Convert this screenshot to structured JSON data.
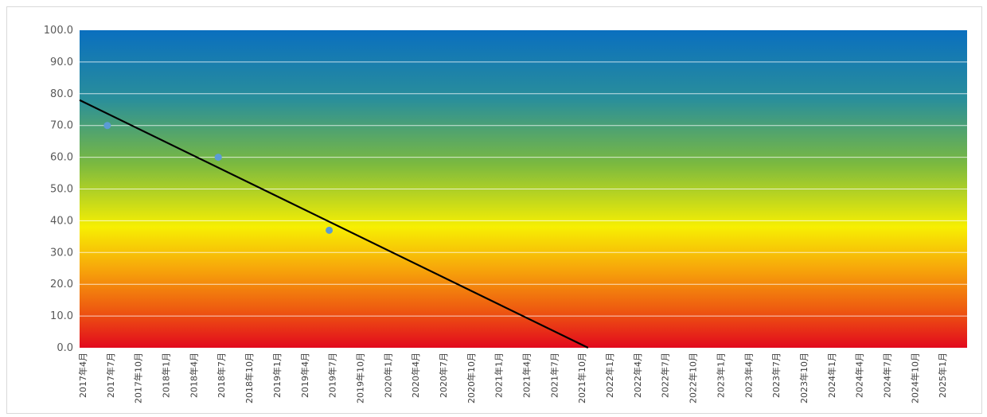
{
  "chart_data": {
    "type": "scatter",
    "title": "",
    "xlabel": "",
    "ylabel": "",
    "ylim": [
      0,
      100
    ],
    "y_ticks": [
      "0.0",
      "10.0",
      "20.0",
      "30.0",
      "40.0",
      "50.0",
      "60.0",
      "70.0",
      "80.0",
      "90.0",
      "100.0"
    ],
    "x_ticks": [
      "2017年4月",
      "2017年7月",
      "2017年10月",
      "2018年1月",
      "2018年4月",
      "2018年7月",
      "2018年10月",
      "2019年1月",
      "2019年4月",
      "2019年7月",
      "2019年10月",
      "2020年1月",
      "2020年4月",
      "2020年7月",
      "2020年10月",
      "2021年1月",
      "2021年4月",
      "2021年7月",
      "2021年10月",
      "2022年1月",
      "2022年4月",
      "2022年7月",
      "2022年10月",
      "2023年1月",
      "2023年4月",
      "2023年7月",
      "2023年10月",
      "2024年1月",
      "2024年4月",
      "2024年7月",
      "2024年10月",
      "2025年1月"
    ],
    "x_range": [
      "2017-04",
      "2025-04"
    ],
    "points": [
      {
        "x": "2017-07",
        "y": 70
      },
      {
        "x": "2018-07",
        "y": 60
      },
      {
        "x": "2019-07",
        "y": 37
      }
    ],
    "trendline": [
      {
        "x": "2017-04",
        "y": 78
      },
      {
        "x": "2021-11",
        "y": 0
      }
    ],
    "grid": true,
    "background": "vertical gradient from red (0) through yellow (~40) and green to blue (100)",
    "colors": {
      "point": "#5b9bd5",
      "trendline": "#000000",
      "gridline": "#ffffff",
      "gradient_top": "#0a6fbf",
      "gradient_green": "#7ab940",
      "gradient_yellow": "#f7ef02",
      "gradient_orange": "#f08a0c",
      "gradient_bottom": "#e2091d"
    }
  }
}
